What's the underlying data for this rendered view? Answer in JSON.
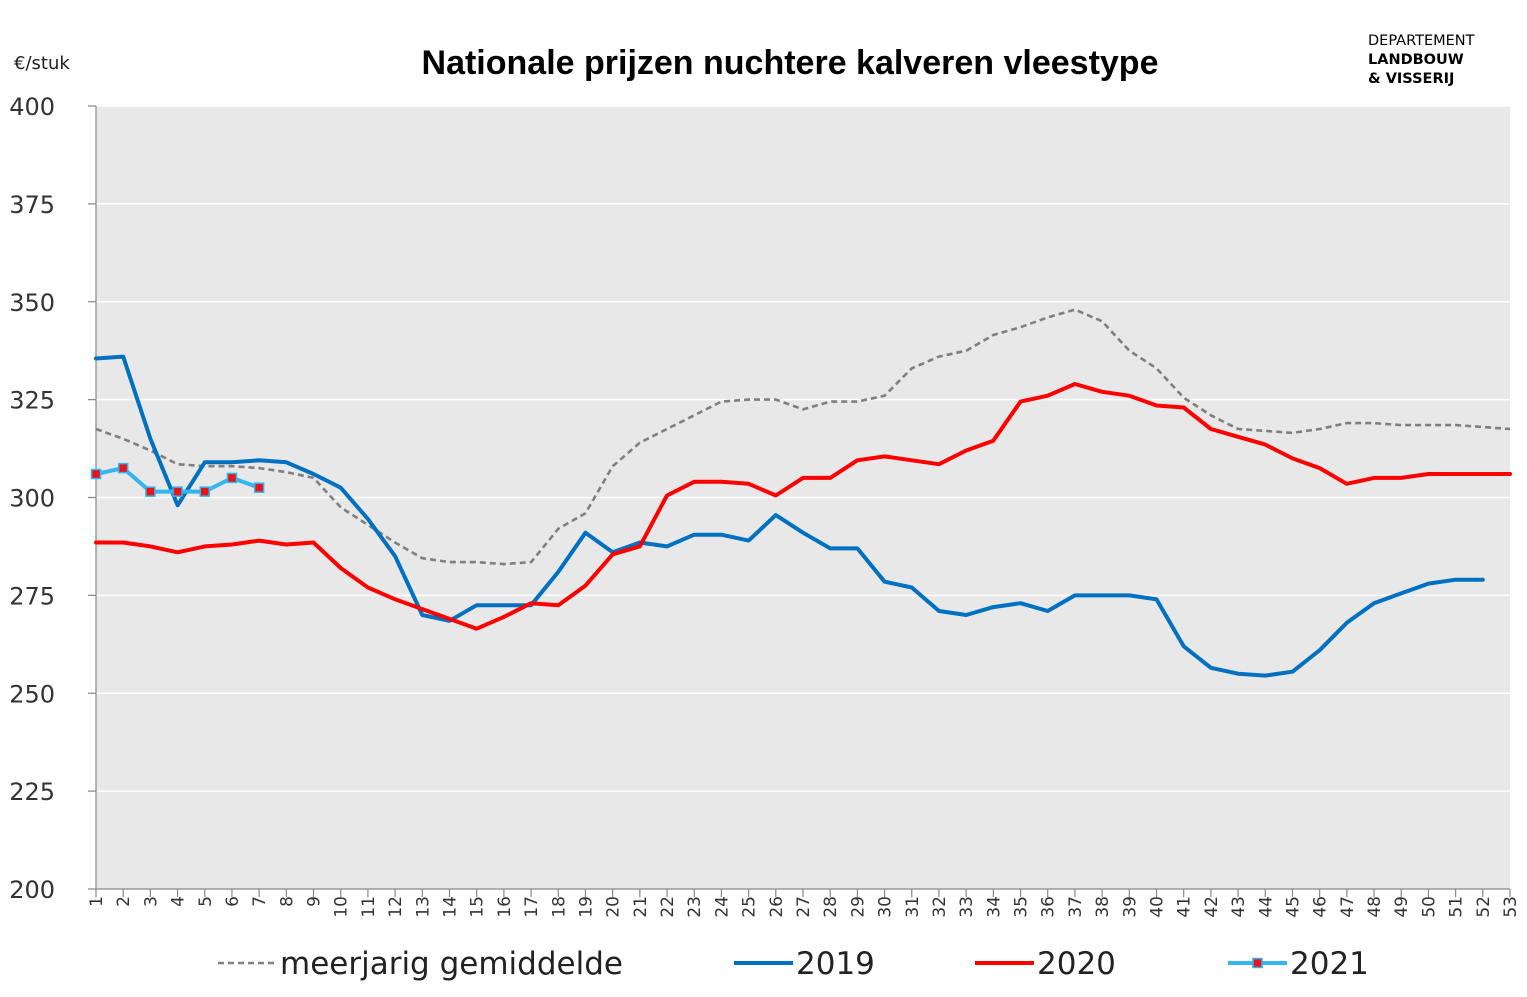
{
  "header": {
    "title": "Nationale prijzen nuchtere kalveren vleestype",
    "unit_label": "€/stuk"
  },
  "logo": {
    "line1": "DEPARTEMENT",
    "line2": "LANDBOUW",
    "line3": "& VISSERIJ"
  },
  "chart_data": {
    "type": "line",
    "title": "Nationale prijzen nuchtere kalveren vleestype",
    "ylabel": "€/stuk",
    "xlabel": "",
    "ylim": [
      200,
      400
    ],
    "yticks": [
      200,
      225,
      250,
      275,
      300,
      325,
      350,
      375,
      400
    ],
    "xlim": [
      1,
      53
    ],
    "categories": [
      "1",
      "2",
      "3",
      "4",
      "5",
      "6",
      "7",
      "8",
      "9",
      "10",
      "11",
      "12",
      "13",
      "14",
      "15",
      "16",
      "17",
      "18",
      "19",
      "20",
      "21",
      "22",
      "23",
      "24",
      "25",
      "26",
      "27",
      "28",
      "29",
      "30",
      "31",
      "32",
      "33",
      "34",
      "35",
      "36",
      "37",
      "38",
      "39",
      "40",
      "41",
      "42",
      "43",
      "44",
      "45",
      "46",
      "47",
      "48",
      "49",
      "50",
      "51",
      "52",
      "53"
    ],
    "grid": true,
    "legend_position": "bottom",
    "colors": {
      "plot_background": "#e8e8e8",
      "gridline": "#ffffff"
    },
    "series": [
      {
        "name": "meerjarig gemiddelde",
        "style": "dashed",
        "color": "#7f7f7f",
        "values": [
          317.5,
          315,
          312,
          308.5,
          308,
          308,
          307.5,
          306.5,
          305,
          297.5,
          293,
          288.5,
          284.5,
          283.5,
          283.5,
          283,
          283.5,
          292,
          296,
          308,
          314,
          317.5,
          321,
          324.5,
          325,
          325,
          322.5,
          324.5,
          324.5,
          326,
          333,
          336,
          337.5,
          341.5,
          343.5,
          346,
          348,
          345,
          337.5,
          333,
          325.5,
          321,
          317.5,
          317,
          316.5,
          317.5,
          319,
          319,
          318.5,
          318.5,
          318.5,
          318,
          317.5
        ]
      },
      {
        "name": "2019",
        "style": "solid",
        "color": "#0070c0",
        "values": [
          335.5,
          336,
          315,
          298,
          309,
          309,
          309.5,
          309,
          306,
          302.5,
          294.5,
          285,
          270,
          268.5,
          272.5,
          272.5,
          272.5,
          281,
          291,
          286,
          288.5,
          287.5,
          290.5,
          290.5,
          289,
          295.5,
          291,
          287,
          287,
          278.5,
          277,
          271,
          270,
          272,
          273,
          271,
          275,
          275,
          275,
          274,
          262,
          256.5,
          255,
          254.5,
          255.5,
          261,
          268,
          273,
          275.5,
          278,
          279,
          279,
          null
        ]
      },
      {
        "name": "2020",
        "style": "solid",
        "color": "#ff0000",
        "values": [
          288.5,
          288.5,
          287.5,
          286,
          287.5,
          288,
          289,
          288,
          288.5,
          282,
          277,
          274,
          271.5,
          269,
          266.5,
          269.5,
          273,
          272.5,
          277.5,
          285.5,
          287.5,
          300.5,
          304,
          304,
          303.5,
          300.5,
          305,
          305,
          309.5,
          310.5,
          309.5,
          308.5,
          312,
          314.5,
          324.5,
          326,
          329,
          327,
          326,
          323.5,
          323,
          317.5,
          315.5,
          313.5,
          310,
          307.5,
          303.5,
          305,
          305,
          306,
          306,
          306,
          306
        ]
      },
      {
        "name": "2021",
        "style": "solid-markers",
        "color": "#33b5ee",
        "marker_color": "#e8141c",
        "values": [
          306,
          307.5,
          301.5,
          301.5,
          301.5,
          305,
          302.5,
          null,
          null,
          null,
          null,
          null,
          null,
          null,
          null,
          null,
          null,
          null,
          null,
          null,
          null,
          null,
          null,
          null,
          null,
          null,
          null,
          null,
          null,
          null,
          null,
          null,
          null,
          null,
          null,
          null,
          null,
          null,
          null,
          null,
          null,
          null,
          null,
          null,
          null,
          null,
          null,
          null,
          null,
          null,
          null,
          null,
          null
        ]
      }
    ]
  }
}
